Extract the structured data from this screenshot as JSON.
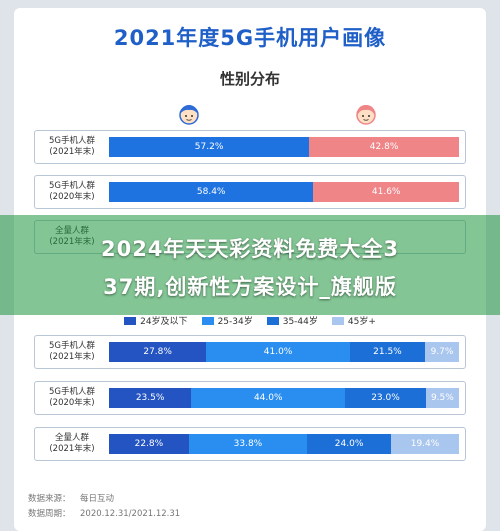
{
  "header": {
    "title": "2021年度5G手机用户画像",
    "section1_title": "性别分布"
  },
  "overlay": {
    "line1": "2024年天天彩资料免费大全3",
    "line2": "37期,创新性方案设计_旗舰版"
  },
  "chart_data": [
    {
      "type": "bar",
      "orientation": "horizontal-stacked-100",
      "title": "性别分布",
      "categories": [
        "5G手机人群\n(2021年末)",
        "5G手机人群\n(2020年末)",
        "全量人群\n(2021年末)"
      ],
      "series": [
        {
          "values": [
            57.2,
            58.4,
            null
          ],
          "labels": [
            "57.2%",
            "58.4%",
            ""
          ]
        },
        {
          "values": [
            42.8,
            41.6,
            null
          ],
          "labels": [
            "42.8%",
            "41.6%",
            ""
          ]
        }
      ],
      "colors": [
        "#1e73e0",
        "#f08588"
      ]
    },
    {
      "type": "bar",
      "orientation": "horizontal-stacked-100",
      "categories": [
        "5G手机人群\n(2021年末)",
        "5G手机人群\n(2020年末)",
        "全量人群\n(2021年末)"
      ],
      "legend": [
        "24岁及以下",
        "25-34岁",
        "35-44岁",
        "45岁+"
      ],
      "series": [
        {
          "name": "24岁及以下",
          "values": [
            27.8,
            23.5,
            22.8
          ],
          "labels": [
            "27.8%",
            "23.5%",
            "22.8%"
          ]
        },
        {
          "name": "25-34岁",
          "values": [
            41.0,
            44.0,
            33.8
          ],
          "labels": [
            "41.0%",
            "44.0%",
            "33.8%"
          ]
        },
        {
          "name": "35-44岁",
          "values": [
            21.5,
            23.0,
            24.0
          ],
          "labels": [
            "21.5%",
            "23.0%",
            "24.0%"
          ]
        },
        {
          "name": "45岁+",
          "values": [
            9.7,
            9.5,
            19.4
          ],
          "labels": [
            "9.7%",
            "9.5%",
            "19.4%"
          ]
        }
      ],
      "colors": [
        "#2354c2",
        "#2a8ef0",
        "#1c6fd6",
        "#a9c6ee"
      ]
    }
  ],
  "footer": {
    "source_key": "数据来源：",
    "source_val": "每日互动",
    "period_key": "数据周期：",
    "period_val": "2020.12.31/2021.12.31"
  }
}
